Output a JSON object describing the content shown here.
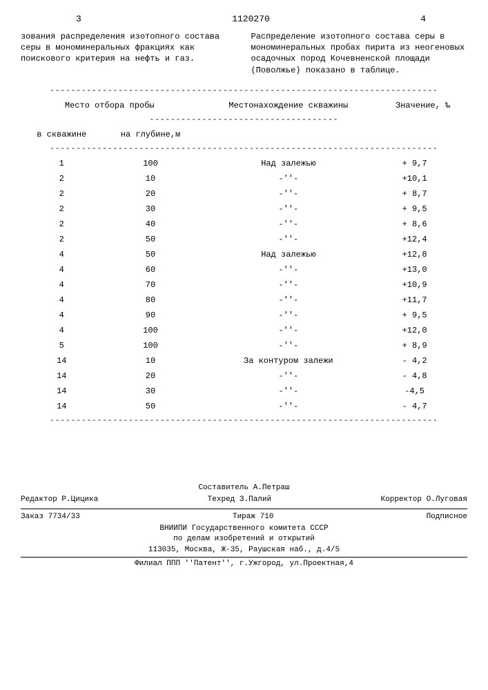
{
  "header": {
    "page_left": "3",
    "doc_number": "1120270",
    "page_right": "4"
  },
  "paragraphs": {
    "left": "зования распределения изотопного состава серы в мономинеральных фракциях как поискового критерия на нефть и газ.",
    "right": "Распределение изотопного состава серы в мономинеральных пробах пирита из неогеновых осадочных пород Кочевненской площади (Поволжье) показано в таблице."
  },
  "table": {
    "head": {
      "col_group": "Место отбора пробы",
      "col1": "в скважине",
      "col2": "на глубине,м",
      "col3": "Местонахождение скважины",
      "col4": "Значение, ‰"
    },
    "rows": [
      {
        "well": "1",
        "depth": "100",
        "loc": "Над залежью",
        "val": "+ 9,7"
      },
      {
        "well": "2",
        "depth": "10",
        "loc": "-''-",
        "val": "+10,1"
      },
      {
        "well": "2",
        "depth": "20",
        "loc": "-''-",
        "val": "+ 8,7"
      },
      {
        "well": "2",
        "depth": "30",
        "loc": "-''-",
        "val": "+ 9,5"
      },
      {
        "well": "2",
        "depth": "40",
        "loc": "-''-",
        "val": "+ 8,6"
      },
      {
        "well": "2",
        "depth": "50",
        "loc": "-''-",
        "val": "+12,4"
      },
      {
        "well": "4",
        "depth": "50",
        "loc": "Над залежью",
        "val": "+12,8"
      },
      {
        "well": "4",
        "depth": "60",
        "loc": "-''-",
        "val": "+13,0"
      },
      {
        "well": "4",
        "depth": "70",
        "loc": "-''-",
        "val": "+10,9"
      },
      {
        "well": "4",
        "depth": "80",
        "loc": "-''-",
        "val": "+11,7"
      },
      {
        "well": "4",
        "depth": "90",
        "loc": "-''-",
        "val": "+ 9,5"
      },
      {
        "well": "4",
        "depth": "100",
        "loc": "-''-",
        "val": "+12,0"
      },
      {
        "well": "5",
        "depth": "100",
        "loc": "-''-",
        "val": "+ 8,9"
      },
      {
        "well": "14",
        "depth": "10",
        "loc": "За контуром залежи",
        "val": "- 4,2"
      },
      {
        "well": "14",
        "depth": "20",
        "loc": "-''-",
        "val": "- 4,8"
      },
      {
        "well": "14",
        "depth": "30",
        "loc": "-''-",
        "val": "-4,5"
      },
      {
        "well": "14",
        "depth": "50",
        "loc": "-''-",
        "val": "- 4,7"
      }
    ]
  },
  "footer": {
    "compiler_label": "Составитель",
    "compiler": "А.Петраш",
    "editor_label": "Редактор",
    "editor": "Р.Цицика",
    "techred_label": "Техред",
    "techred": "З.Палий",
    "corrector_label": "Корректор",
    "corrector": "О.Луговая",
    "order": "Заказ 7734/33",
    "tirazh": "Тираж 710",
    "podpisnoe": "Подписное",
    "org1": "ВНИИПИ Государственного комитета СССР",
    "org2": "по делам изобретений и открытий",
    "addr1": "113035, Москва, Ж-35, Раушская наб., д.4/5",
    "addr2": "Филиал ППП ''Патент'', г.Ужгород, ул.Проектная,4"
  }
}
